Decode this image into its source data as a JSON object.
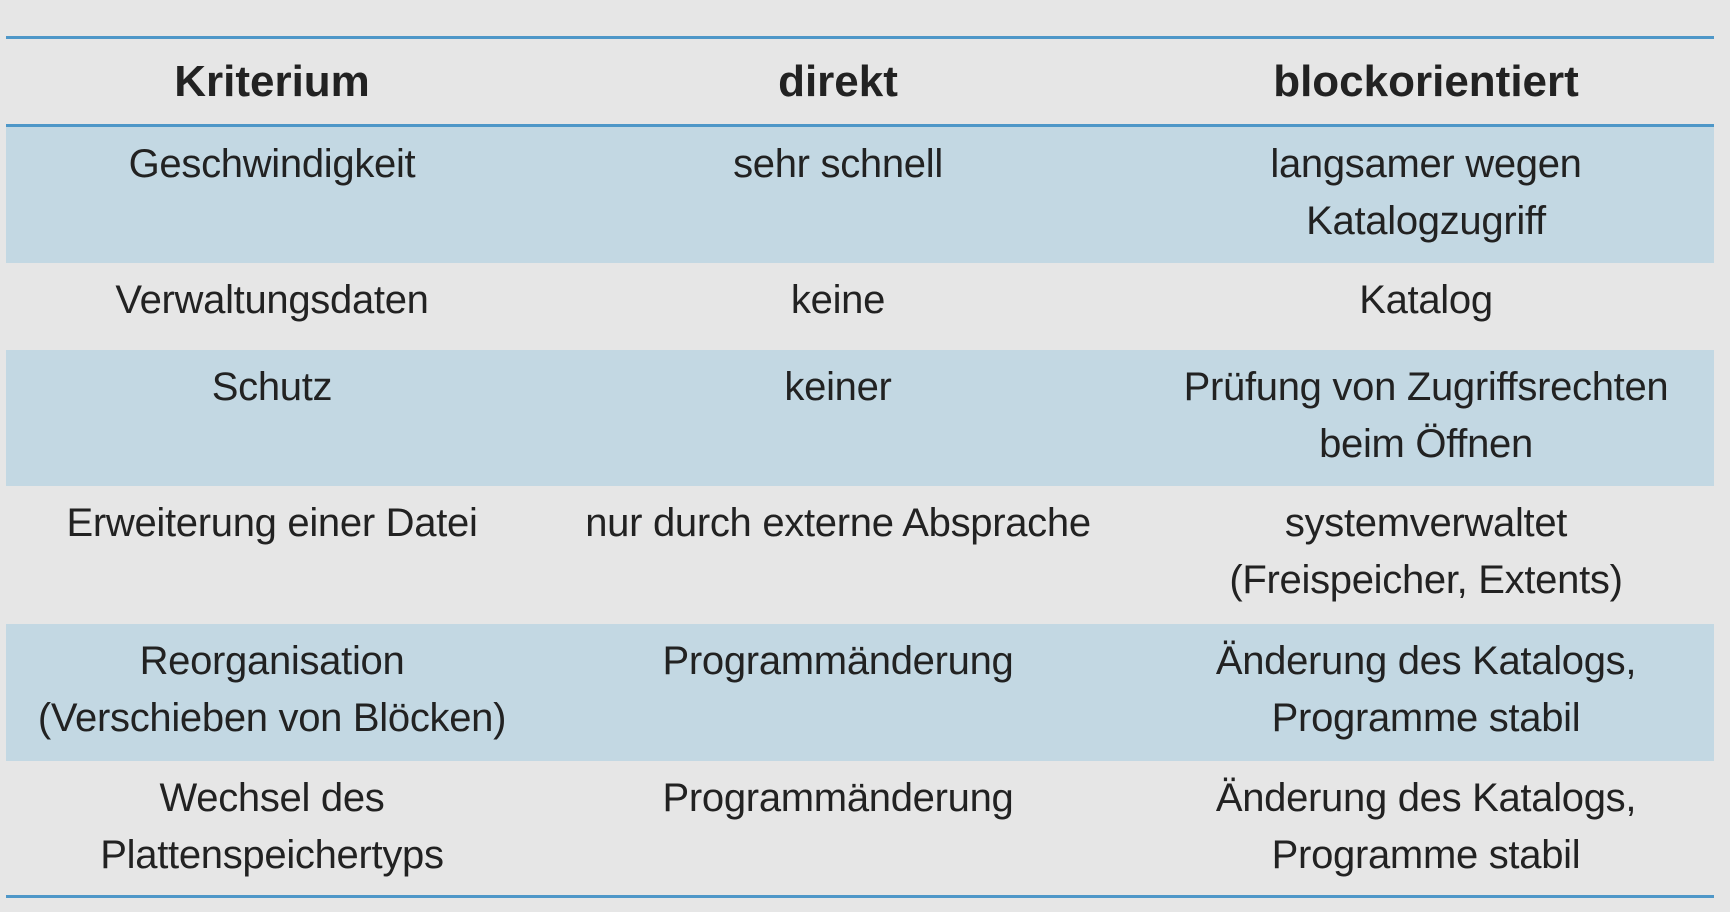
{
  "table": {
    "headers": [
      "Kriterium",
      "direkt",
      "blockorientiert"
    ],
    "rows": [
      {
        "kriterium": [
          "Geschwindigkeit"
        ],
        "direkt": [
          "sehr schnell"
        ],
        "blockorientiert": [
          "langsamer wegen",
          "Katalogzugriff"
        ]
      },
      {
        "kriterium": [
          "Verwaltungsdaten"
        ],
        "direkt": [
          "keine"
        ],
        "blockorientiert": [
          "Katalog"
        ]
      },
      {
        "kriterium": [
          "Schutz"
        ],
        "direkt": [
          "keiner"
        ],
        "blockorientiert": [
          "Prüfung von Zugriffsrechten",
          "beim Öffnen"
        ]
      },
      {
        "kriterium": [
          "Erweiterung einer Datei"
        ],
        "direkt": [
          "nur durch externe Absprache"
        ],
        "blockorientiert": [
          "systemverwaltet",
          "(Freispeicher, Extents)"
        ]
      },
      {
        "kriterium": [
          "Reorganisation",
          "(Verschieben von Blöcken)"
        ],
        "direkt": [
          "Programmänderung"
        ],
        "blockorientiert": [
          "Änderung des Katalogs,",
          "Programme stabil"
        ]
      },
      {
        "kriterium": [
          "Wechsel des",
          "Plattenspeichertyps"
        ],
        "direkt": [
          "Programmänderung"
        ],
        "blockorientiert": [
          "Änderung des Katalogs,",
          "Programme stabil"
        ]
      }
    ]
  },
  "colors": {
    "rule": "#4e97c8",
    "shade": "#c3d8e3",
    "background": "#e6e6e6"
  }
}
